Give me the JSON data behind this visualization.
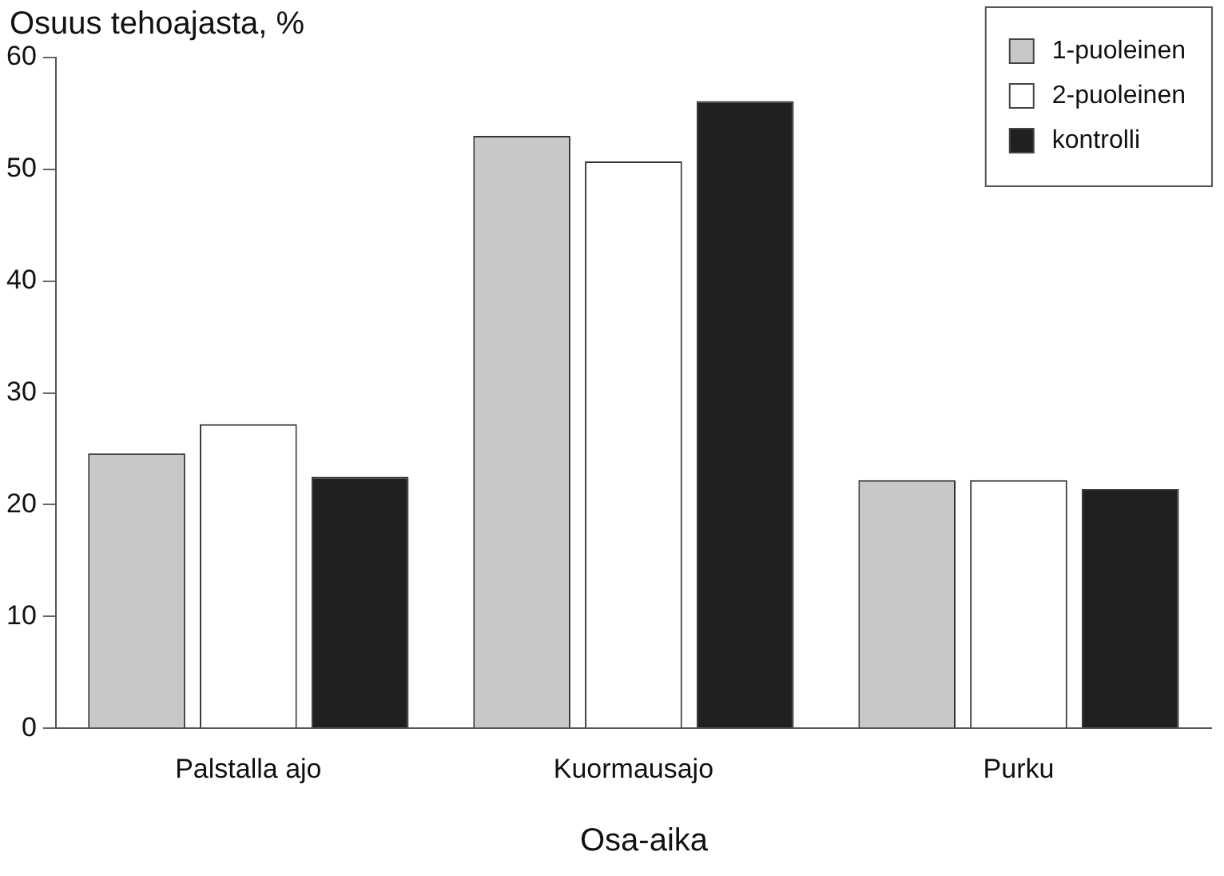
{
  "chart_data": {
    "type": "bar",
    "ylabel": "Osuus tehoajasta, %",
    "xlabel": "Osa-aika",
    "categories": [
      "Palstalla ajo",
      "Kuormausajo",
      "Purku"
    ],
    "series": [
      {
        "name": "1-puoleinen",
        "color": "#c8c8c8",
        "values": [
          24.6,
          53.0,
          22.2
        ]
      },
      {
        "name": "2-puoleinen",
        "color": "#ffffff",
        "values": [
          27.2,
          50.7,
          22.2
        ]
      },
      {
        "name": "kontrolli",
        "color": "#202020",
        "values": [
          22.5,
          56.1,
          21.4
        ]
      }
    ],
    "ylim": [
      0,
      60
    ],
    "yticks": [
      0,
      10,
      20,
      30,
      40,
      50,
      60
    ],
    "grid": false,
    "legend": "top right"
  }
}
